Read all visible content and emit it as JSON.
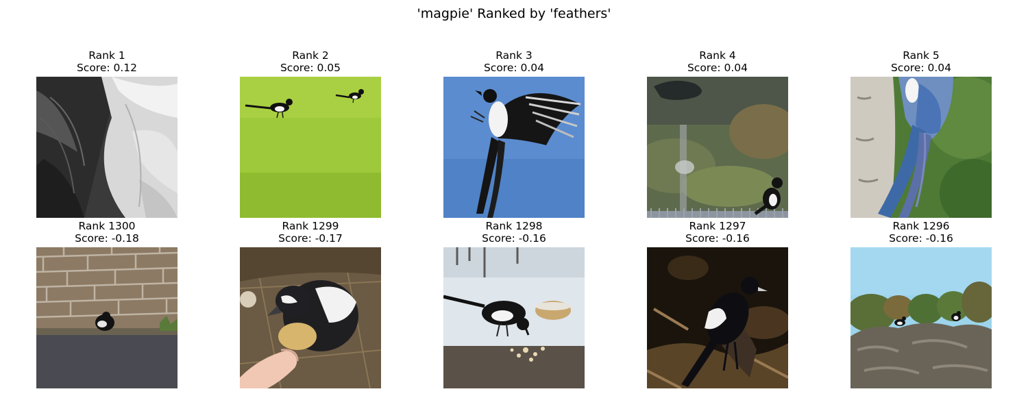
{
  "figure": {
    "title": "'magpie' Ranked by 'feathers'"
  },
  "top_row": [
    {
      "rank": "Rank 1",
      "score": "Score: 0.12",
      "image": "black-and-white-feathers-closeup"
    },
    {
      "rank": "Rank 2",
      "score": "Score: 0.05",
      "image": "two-magpies-on-grass"
    },
    {
      "rank": "Rank 3",
      "score": "Score: 0.04",
      "image": "magpie-flying-blue-sky"
    },
    {
      "rank": "Rank 4",
      "score": "Score: 0.04",
      "image": "magpie-on-fence-blurry-background"
    },
    {
      "rank": "Rank 5",
      "score": "Score: 0.04",
      "image": "blue-tail-feathers-by-tree-trunk"
    }
  ],
  "bottom_row": [
    {
      "rank": "Rank 1300",
      "score": "Score: -0.18",
      "image": "magpie-by-brick-wall"
    },
    {
      "rank": "Rank 1299",
      "score": "Score: -0.17",
      "image": "magpie-eating-from-hand"
    },
    {
      "rank": "Rank 1298",
      "score": "Score: -0.16",
      "image": "magpie-feeding-in-snow"
    },
    {
      "rank": "Rank 1297",
      "score": "Score: -0.16",
      "image": "magpie-on-dark-ground"
    },
    {
      "rank": "Rank 1296",
      "score": "Score: -0.16",
      "image": "magpies-on-rocks-under-sky"
    }
  ]
}
